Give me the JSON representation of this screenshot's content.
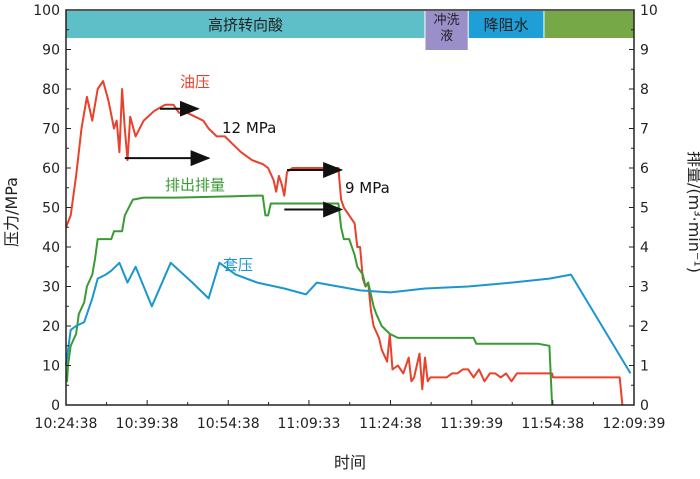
{
  "chart_data": {
    "type": "line",
    "xlabel": "时间",
    "ylabel_left": "压力/MPa",
    "ylabel_right": "排量/(m³·min⁻¹)",
    "xlim": [
      "10:24:38",
      "12:09:39"
    ],
    "ylim_left": [
      0,
      100
    ],
    "ylim_right": [
      0,
      10
    ],
    "x_ticks": [
      "10:24:38",
      "10:39:38",
      "10:54:38",
      "11:09:33",
      "11:24:38",
      "11:39:39",
      "11:54:38",
      "12:09:39"
    ],
    "y_ticks_left": [
      0,
      10,
      20,
      30,
      40,
      50,
      60,
      70,
      80,
      90,
      100
    ],
    "y_ticks_right": [
      0,
      1,
      2,
      3,
      4,
      5,
      6,
      7,
      8,
      9,
      10
    ],
    "grid": false,
    "stages": [
      {
        "label": "高挤转向酸",
        "start": "10:24:38",
        "end": "11:31:00",
        "color": "#5fbfc8"
      },
      {
        "label": "冲洗液",
        "start": "11:31:00",
        "end": "11:39:00",
        "color": "#9b8fc9"
      },
      {
        "label": "降阻水",
        "start": "11:39:00",
        "end": "11:53:00",
        "color": "#1e9fd8"
      },
      {
        "label": "",
        "start": "11:53:00",
        "end": "12:09:39",
        "color": "#77a847"
      }
    ],
    "series": [
      {
        "name": "油压",
        "axis": "left",
        "color": "#e8412c",
        "points": [
          [
            "10:24:38",
            45
          ],
          [
            "10:25:30",
            48
          ],
          [
            "10:26:30",
            58
          ],
          [
            "10:27:30",
            70
          ],
          [
            "10:28:30",
            78
          ],
          [
            "10:29:30",
            72
          ],
          [
            "10:30:30",
            80
          ],
          [
            "10:31:30",
            82
          ],
          [
            "10:32:30",
            77
          ],
          [
            "10:33:30",
            70
          ],
          [
            "10:34:00",
            72
          ],
          [
            "10:34:30",
            64
          ],
          [
            "10:35:00",
            80
          ],
          [
            "10:35:30",
            70
          ],
          [
            "10:36:00",
            62
          ],
          [
            "10:36:30",
            73
          ],
          [
            "10:37:30",
            68
          ],
          [
            "10:39:00",
            72
          ],
          [
            "10:41:00",
            74.5
          ],
          [
            "10:43:00",
            76
          ],
          [
            "10:44:30",
            76
          ],
          [
            "10:45:30",
            74
          ],
          [
            "10:47:00",
            74
          ],
          [
            "10:48:30",
            73
          ],
          [
            "10:50:00",
            72
          ],
          [
            "10:51:00",
            70
          ],
          [
            "10:52:30",
            68
          ],
          [
            "10:54:00",
            68
          ],
          [
            "10:55:30",
            66
          ],
          [
            "10:57:00",
            64
          ],
          [
            "10:59:00",
            62
          ],
          [
            "11:01:00",
            61
          ],
          [
            "11:02:00",
            60
          ],
          [
            "11:03:00",
            57
          ],
          [
            "11:03:30",
            54
          ],
          [
            "11:04:00",
            58
          ],
          [
            "11:04:30",
            56
          ],
          [
            "11:05:00",
            53
          ],
          [
            "11:05:30",
            59
          ],
          [
            "11:06:30",
            60
          ],
          [
            "11:08:00",
            60
          ],
          [
            "11:10:00",
            60
          ],
          [
            "11:13:00",
            60
          ],
          [
            "11:15:00",
            60
          ],
          [
            "11:15:30",
            52
          ],
          [
            "11:16:00",
            50
          ],
          [
            "11:17:00",
            48
          ],
          [
            "11:18:00",
            46
          ],
          [
            "11:18:30",
            40
          ],
          [
            "11:19:00",
            40
          ],
          [
            "11:19:30",
            32
          ],
          [
            "11:20:00",
            30
          ],
          [
            "11:20:30",
            31
          ],
          [
            "11:21:00",
            24
          ],
          [
            "11:21:30",
            20
          ],
          [
            "11:22:30",
            17
          ],
          [
            "11:23:00",
            14
          ],
          [
            "11:24:00",
            11
          ],
          [
            "11:24:30",
            18
          ],
          [
            "11:25:00",
            9
          ],
          [
            "11:26:00",
            10
          ],
          [
            "11:27:00",
            8
          ],
          [
            "11:28:00",
            12
          ],
          [
            "11:28:30",
            6
          ],
          [
            "11:29:00",
            7
          ],
          [
            "11:30:00",
            13
          ],
          [
            "11:30:30",
            4
          ],
          [
            "11:31:00",
            12
          ],
          [
            "11:31:30",
            6
          ],
          [
            "11:32:00",
            7
          ],
          [
            "11:33:00",
            7
          ],
          [
            "11:35:00",
            7
          ],
          [
            "11:36:00",
            8
          ],
          [
            "11:37:00",
            8
          ],
          [
            "11:38:00",
            9
          ],
          [
            "11:39:00",
            9
          ],
          [
            "11:40:00",
            7
          ],
          [
            "11:41:00",
            9
          ],
          [
            "11:42:00",
            6
          ],
          [
            "11:43:00",
            8
          ],
          [
            "11:44:00",
            8
          ],
          [
            "11:45:00",
            7
          ],
          [
            "11:46:00",
            8
          ],
          [
            "11:47:00",
            6
          ],
          [
            "11:48:00",
            8
          ],
          [
            "11:50:00",
            8
          ],
          [
            "11:52:00",
            8
          ],
          [
            "11:54:30",
            8
          ],
          [
            "11:54:40",
            7
          ],
          [
            "11:58:00",
            7
          ],
          [
            "12:01:00",
            7
          ],
          [
            "12:04:00",
            7
          ],
          [
            "12:07:00",
            7
          ],
          [
            "12:07:30",
            0
          ]
        ]
      },
      {
        "name": "排出排量",
        "axis": "right",
        "color": "#3a9a35",
        "points": [
          [
            "10:24:38",
            0.6
          ],
          [
            "10:24:50",
            0.6
          ],
          [
            "10:25:00",
            1.0
          ],
          [
            "10:25:30",
            1.5
          ],
          [
            "10:26:30",
            1.8
          ],
          [
            "10:27:00",
            2.3
          ],
          [
            "10:28:00",
            2.6
          ],
          [
            "10:28:30",
            3.0
          ],
          [
            "10:29:30",
            3.3
          ],
          [
            "10:30:00",
            3.7
          ],
          [
            "10:30:30",
            4.2
          ],
          [
            "10:33:00",
            4.2
          ],
          [
            "10:33:30",
            4.4
          ],
          [
            "10:35:00",
            4.4
          ],
          [
            "10:35:30",
            4.8
          ],
          [
            "10:37:00",
            5.2
          ],
          [
            "10:39:00",
            5.25
          ],
          [
            "10:45:00",
            5.25
          ],
          [
            "10:55:00",
            5.28
          ],
          [
            "11:00:00",
            5.3
          ],
          [
            "11:01:00",
            5.3
          ],
          [
            "11:01:30",
            4.8
          ],
          [
            "11:02:00",
            4.8
          ],
          [
            "11:02:30",
            5.1
          ],
          [
            "11:09:00",
            5.1
          ],
          [
            "11:13:00",
            5.1
          ],
          [
            "11:15:00",
            5.1
          ],
          [
            "11:15:30",
            4.5
          ],
          [
            "11:16:00",
            4.2
          ],
          [
            "11:17:00",
            4.2
          ],
          [
            "11:18:00",
            3.8
          ],
          [
            "11:18:30",
            3.5
          ],
          [
            "11:19:30",
            3.3
          ],
          [
            "11:20:00",
            3.0
          ],
          [
            "11:20:30",
            3.1
          ],
          [
            "11:21:00",
            2.8
          ],
          [
            "11:21:30",
            2.5
          ],
          [
            "11:22:00",
            2.3
          ],
          [
            "11:23:00",
            2.0
          ],
          [
            "11:24:30",
            1.8
          ],
          [
            "11:26:00",
            1.7
          ],
          [
            "11:30:00",
            1.7
          ],
          [
            "11:35:00",
            1.7
          ],
          [
            "11:40:00",
            1.7
          ],
          [
            "11:40:30",
            1.55
          ],
          [
            "11:44:00",
            1.55
          ],
          [
            "11:48:00",
            1.55
          ],
          [
            "11:52:00",
            1.55
          ],
          [
            "11:54:00",
            1.5
          ],
          [
            "11:54:30",
            0
          ]
        ]
      },
      {
        "name": "套压",
        "axis": "left",
        "color": "#1b97cf",
        "points": [
          [
            "10:24:38",
            10
          ],
          [
            "10:25:30",
            19
          ],
          [
            "10:26:30",
            20
          ],
          [
            "10:28:00",
            21
          ],
          [
            "10:29:30",
            27
          ],
          [
            "10:30:30",
            32
          ],
          [
            "10:32:00",
            33
          ],
          [
            "10:33:00",
            34
          ],
          [
            "10:34:30",
            36
          ],
          [
            "10:36:00",
            31
          ],
          [
            "10:37:30",
            35
          ],
          [
            "10:40:30",
            25
          ],
          [
            "10:44:00",
            36
          ],
          [
            "10:48:00",
            31
          ],
          [
            "10:51:00",
            27
          ],
          [
            "10:53:00",
            36
          ],
          [
            "10:56:00",
            33
          ],
          [
            "11:00:00",
            31
          ],
          [
            "11:05:00",
            29.5
          ],
          [
            "11:09:00",
            28
          ],
          [
            "11:11:00",
            31
          ],
          [
            "11:15:00",
            30
          ],
          [
            "11:19:00",
            29
          ],
          [
            "11:24:38",
            28.5
          ],
          [
            "11:31:00",
            29.5
          ],
          [
            "11:39:00",
            30
          ],
          [
            "11:47:00",
            31
          ],
          [
            "11:54:00",
            32
          ],
          [
            "11:58:00",
            33
          ],
          [
            "12:09:00",
            8
          ]
        ]
      }
    ],
    "annotations": [
      {
        "text": "12 MPa",
        "x": "10:50:00",
        "y": 72
      },
      {
        "text": "9 MPa",
        "x": "11:16:00",
        "y": 54
      }
    ]
  }
}
